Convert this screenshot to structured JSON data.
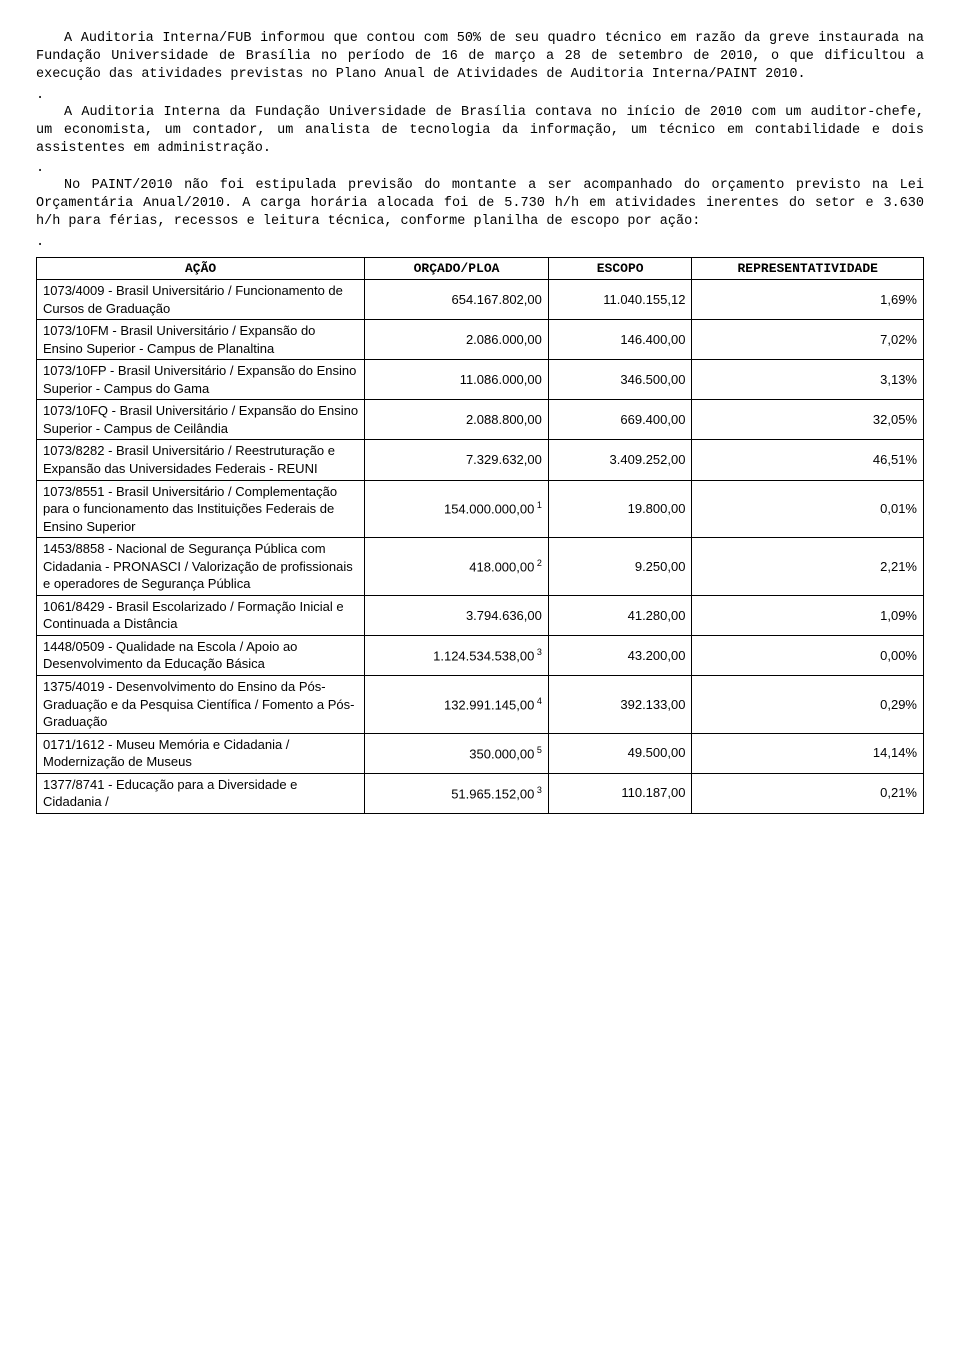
{
  "paragraphs": {
    "p1": "A Auditoria Interna/FUB informou que contou com 50% de seu quadro técnico em razão da greve instaurada na Fundação Universidade de Brasília no período de 16 de março a 28 de setembro de 2010, o que dificultou a execução das atividades previstas no Plano Anual de Atividades de Auditoria Interna/PAINT 2010.",
    "p2": "A Auditoria Interna da Fundação Universidade de Brasília contava no início de 2010 com um auditor-chefe, um economista, um contador, um analista de tecnologia da informação, um técnico em contabilidade e dois assistentes em administração.",
    "p3": "No PAINT/2010 não foi estipulada previsão do montante a ser acompanhado do orçamento previsto na Lei Orçamentária Anual/2010. A carga horária alocada foi de 5.730 h/h em atividades inerentes do setor e 3.630 h/h para férias, recessos e leitura técnica, conforme planilha de escopo por ação:"
  },
  "table": {
    "headers": [
      "AÇÃO",
      "ORÇADO/PLOA",
      "ESCOPO",
      "REPRESENTATIVIDADE"
    ],
    "col_widths": [
      "37%",
      "21%",
      "18%",
      "24%"
    ],
    "rows": [
      {
        "acao": "1073/4009 - Brasil Universitário / Funcionamento de Cursos de Graduação",
        "orcado": "654.167.802,00",
        "sup": "",
        "escopo": "11.040.155,12",
        "rep": "1,69%"
      },
      {
        "acao": "1073/10FM - Brasil Universitário / Expansão do Ensino Superior - Campus de Planaltina",
        "orcado": "2.086.000,00",
        "sup": "",
        "escopo": "146.400,00",
        "rep": "7,02%"
      },
      {
        "acao": "1073/10FP - Brasil Universitário / Expansão do Ensino Superior - Campus do Gama",
        "orcado": "11.086.000,00",
        "sup": "",
        "escopo": "346.500,00",
        "rep": "3,13%"
      },
      {
        "acao": "1073/10FQ - Brasil Universitário / Expansão do Ensino Superior - Campus de Ceilândia",
        "orcado": "2.088.800,00",
        "sup": "",
        "escopo": "669.400,00",
        "rep": "32,05%"
      },
      {
        "acao": "1073/8282 - Brasil Universitário / Reestruturação e Expansão das Universidades Federais - REUNI",
        "orcado": "7.329.632,00",
        "sup": "",
        "escopo": "3.409.252,00",
        "rep": "46,51%"
      },
      {
        "acao": "1073/8551 - Brasil Universitário / Complementação para o funcionamento das Instituições Federais de Ensino Superior",
        "orcado": "154.000.000,00",
        "sup": "1",
        "escopo": "19.800,00",
        "rep": "0,01%"
      },
      {
        "acao": "1453/8858 - Nacional de Segurança Pública com Cidadania - PRONASCI / Valorização de profissionais e operadores de Segurança Pública",
        "orcado": "418.000,00",
        "sup": "2",
        "escopo": "9.250,00",
        "rep": "2,21%"
      },
      {
        "acao": "1061/8429 - Brasil Escolarizado / Formação Inicial e Continuada a Distância",
        "orcado": "3.794.636,00",
        "sup": "",
        "escopo": "41.280,00",
        "rep": "1,09%"
      },
      {
        "acao": "1448/0509 - Qualidade na Escola / Apoio ao Desenvolvimento da Educação Básica",
        "orcado": "1.124.534.538,00",
        "sup": "3",
        "escopo": "43.200,00",
        "rep": "0,00%"
      },
      {
        "acao": "1375/4019 - Desenvolvimento do Ensino da Pós-Graduação e da Pesquisa Científica / Fomento a Pós-Graduação",
        "orcado": "132.991.145,00",
        "sup": "4",
        "escopo": "392.133,00",
        "rep": "0,29%"
      },
      {
        "acao": "0171/1612 - Museu Memória e Cidadania / Modernização de Museus",
        "orcado": "350.000,00",
        "sup": "5",
        "escopo": "49.500,00",
        "rep": "14,14%"
      },
      {
        "acao": "1377/8741 - Educação para a Diversidade e Cidadania /",
        "orcado": "51.965.152,00",
        "sup": "3",
        "escopo": "110.187,00",
        "rep": "0,21%"
      }
    ]
  }
}
